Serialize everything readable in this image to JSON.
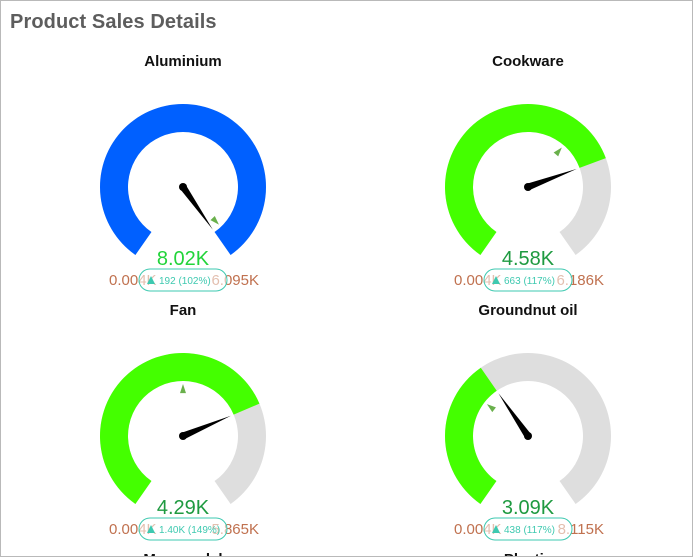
{
  "page": {
    "title": "Product Sales Details"
  },
  "gauges": [
    {
      "title": "Aluminium",
      "value_label": "8.02K",
      "min_label": "0.004K",
      "max_label": "6.095K",
      "badge": "192 (102%)",
      "value": 8.02,
      "min": 0.004,
      "max": 6.095,
      "target_fraction": 0.97,
      "fill_color": "#0060ff",
      "value_color": "#22d43a"
    },
    {
      "title": "Cookware",
      "value_label": "4.58K",
      "min_label": "0.004K",
      "max_label": "6.186K",
      "badge": "663 (117%)",
      "value": 4.58,
      "min": 0.004,
      "max": 6.186,
      "target_fraction": 0.64,
      "fill_color": "#44ff00",
      "value_color": "#1e9a40"
    },
    {
      "title": "Fan",
      "value_label": "4.29K",
      "min_label": "0.004K",
      "max_label": "5.865K",
      "badge": "1.40K (149%)",
      "value": 4.29,
      "min": 0.004,
      "max": 5.865,
      "target_fraction": 0.5,
      "fill_color": "#44ff00",
      "value_color": "#1e9a40"
    },
    {
      "title": "Groundnut oil",
      "value_label": "3.09K",
      "min_label": "0.004K",
      "max_label": "8.115K",
      "badge": "438 (117%)",
      "value": 3.09,
      "min": 0.004,
      "max": 8.115,
      "target_fraction": 0.32,
      "fill_color": "#44ff00",
      "value_color": "#1e9a40"
    }
  ],
  "colors": {
    "track": "#dedede",
    "needle": "#000000",
    "target_marker": "#6ab04c",
    "min_max_label": "#c0714f",
    "badge": "#3ec9b0"
  },
  "partial_titles": [
    "Masoor dal",
    "Plastic"
  ]
}
